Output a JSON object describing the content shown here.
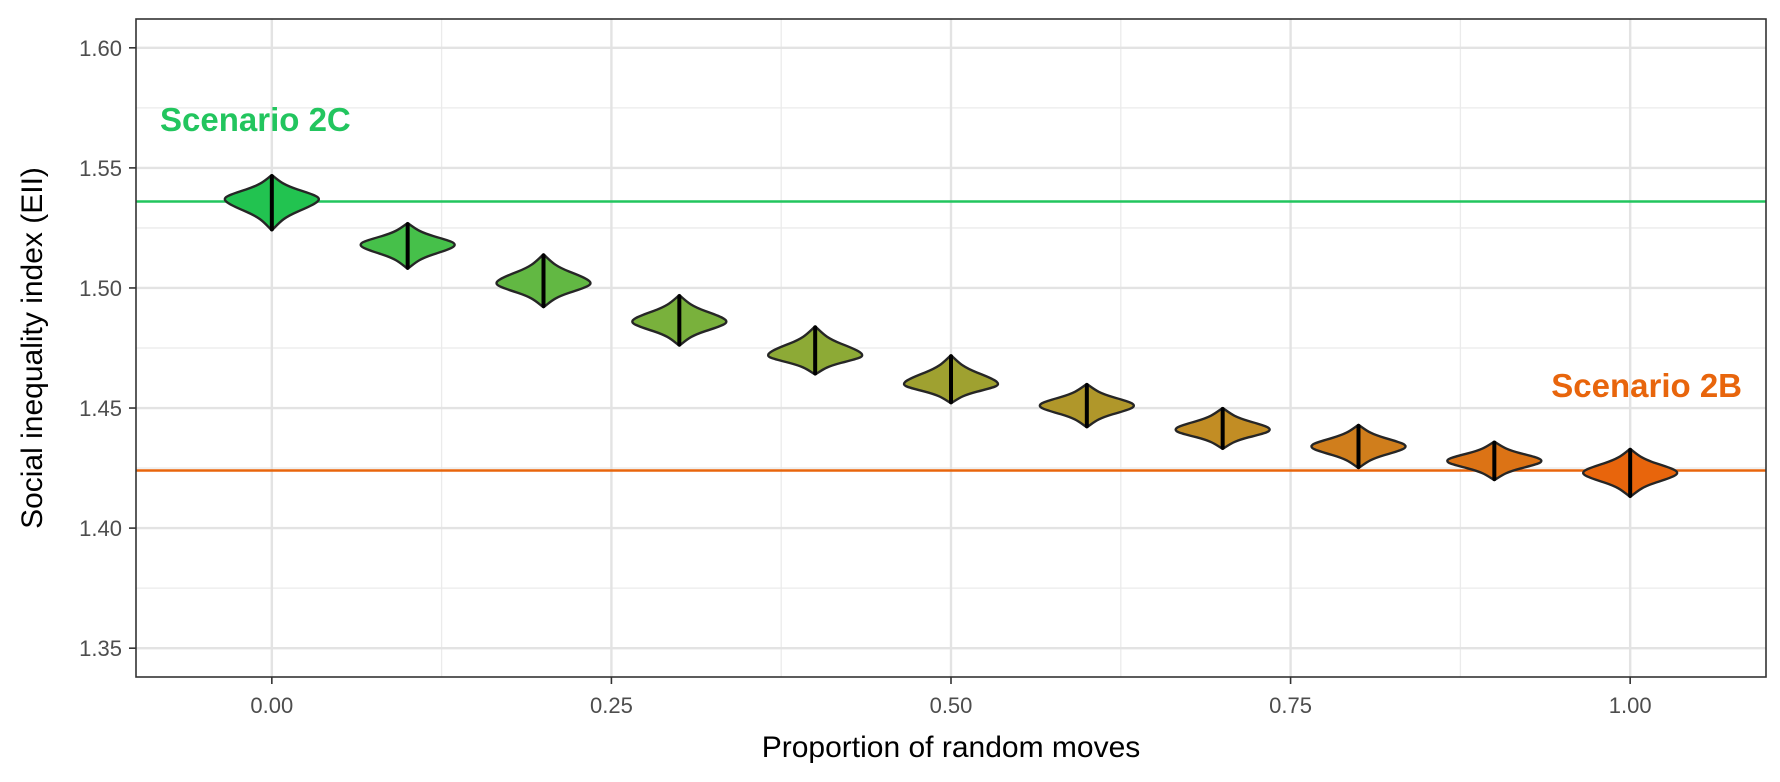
{
  "chart_data": {
    "type": "violin",
    "title": "",
    "xlabel": "Proportion of random moves",
    "ylabel": "Social inequality index (EII)",
    "xlim": [
      -0.1,
      1.1
    ],
    "ylim": [
      1.338,
      1.612
    ],
    "x_ticks": [
      0.0,
      0.25,
      0.5,
      0.75,
      1.0
    ],
    "x_tick_labels": [
      "0.00",
      "0.25",
      "0.50",
      "0.75",
      "1.00"
    ],
    "y_ticks": [
      1.35,
      1.4,
      1.45,
      1.5,
      1.55,
      1.6
    ],
    "y_tick_labels": [
      "1.35",
      "1.40",
      "1.45",
      "1.50",
      "1.55",
      "1.60"
    ],
    "grid": true,
    "legend": "none",
    "reference_lines": [
      {
        "label": "Scenario 2C",
        "y": 1.536,
        "color": "#22c55e"
      },
      {
        "label": "Scenario 2B",
        "y": 1.424,
        "color": "#e8650c"
      }
    ],
    "violins": [
      {
        "x": 0.0,
        "center": 1.537,
        "min": 1.524,
        "max": 1.547,
        "color": "#22c350"
      },
      {
        "x": 0.1,
        "center": 1.518,
        "min": 1.508,
        "max": 1.527,
        "color": "#46c04a"
      },
      {
        "x": 0.2,
        "center": 1.502,
        "min": 1.492,
        "max": 1.514,
        "color": "#62b843"
      },
      {
        "x": 0.3,
        "center": 1.486,
        "min": 1.476,
        "max": 1.497,
        "color": "#79b13c"
      },
      {
        "x": 0.4,
        "center": 1.472,
        "min": 1.464,
        "max": 1.484,
        "color": "#8daa36"
      },
      {
        "x": 0.5,
        "center": 1.46,
        "min": 1.452,
        "max": 1.472,
        "color": "#9fa130"
      },
      {
        "x": 0.6,
        "center": 1.451,
        "min": 1.442,
        "max": 1.46,
        "color": "#b0972a"
      },
      {
        "x": 0.7,
        "center": 1.441,
        "min": 1.433,
        "max": 1.45,
        "color": "#c28d24"
      },
      {
        "x": 0.8,
        "center": 1.434,
        "min": 1.425,
        "max": 1.443,
        "color": "#d07e1c"
      },
      {
        "x": 0.9,
        "center": 1.428,
        "min": 1.42,
        "max": 1.436,
        "color": "#dc7315"
      },
      {
        "x": 1.0,
        "center": 1.423,
        "min": 1.413,
        "max": 1.433,
        "color": "#e8650c"
      }
    ]
  }
}
